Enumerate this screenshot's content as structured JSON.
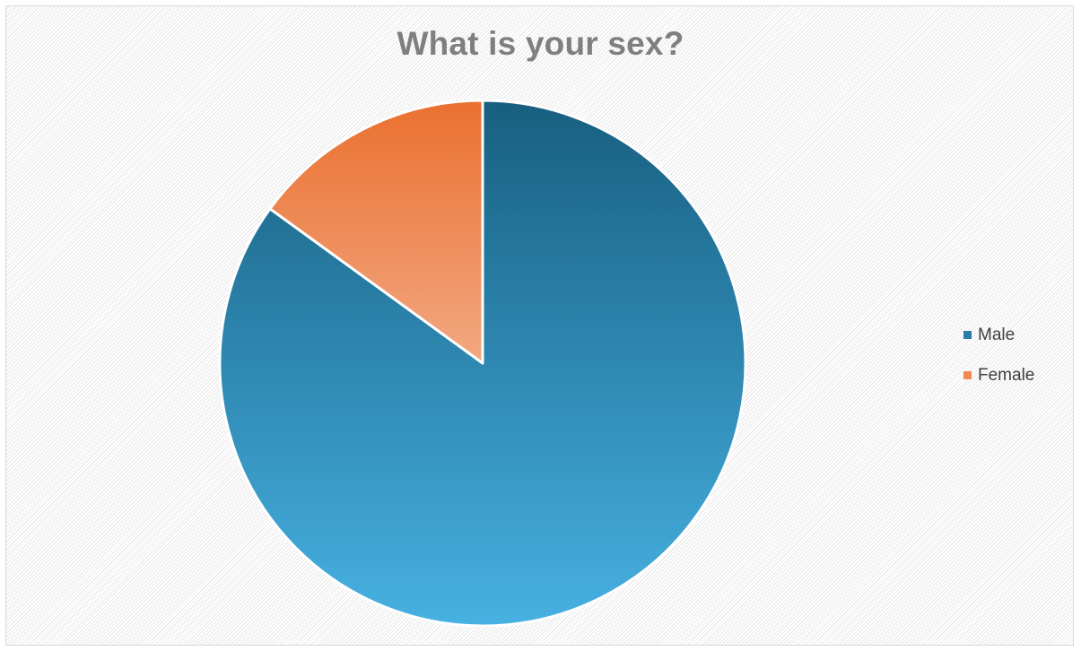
{
  "chart_data": {
    "type": "pie",
    "title": "What is your sex?",
    "categories": [
      "Male",
      "Female"
    ],
    "values": [
      85,
      15
    ],
    "colors": [
      "#1f6f96",
      "#ee7f45"
    ],
    "legend_position": "right",
    "start_angle": "top",
    "direction": "clockwise"
  }
}
